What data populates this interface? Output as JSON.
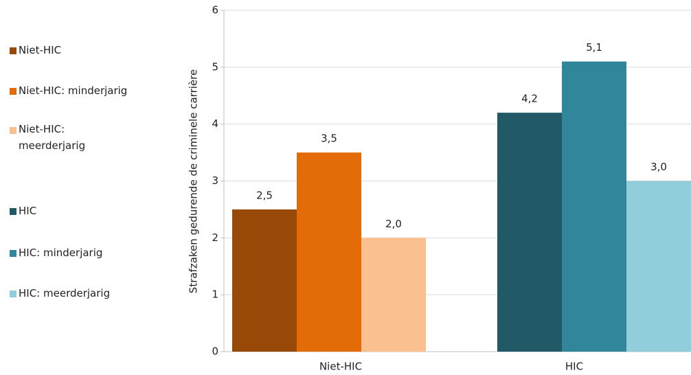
{
  "chart_data": {
    "type": "bar",
    "y_label": "Strafzaken gedurende de criminele carrière",
    "categories": [
      "Niet-HIC",
      "HIC"
    ],
    "series": [
      {
        "name": "Niet-HIC",
        "color": "#984807",
        "values": [
          2.5,
          null
        ],
        "value_labels": [
          "2,5",
          null
        ]
      },
      {
        "name": "Niet-HIC: minderjarig",
        "color": "#e36c09",
        "values": [
          3.5,
          null
        ],
        "value_labels": [
          "3,5",
          null
        ]
      },
      {
        "name": "Niet-HIC: meerderjarig",
        "color": "#fac090",
        "values": [
          2.0,
          null
        ],
        "value_labels": [
          "2,0",
          null
        ]
      },
      {
        "name": "HIC",
        "color": "#215967",
        "values": [
          null,
          4.2
        ],
        "value_labels": [
          null,
          "4,2"
        ]
      },
      {
        "name": "HIC: minderjarig",
        "color": "#31869b",
        "values": [
          null,
          5.1
        ],
        "value_labels": [
          null,
          "5,1"
        ]
      },
      {
        "name": "HIC: meerderjarig",
        "color": "#92cddc",
        "values": [
          null,
          3.0
        ],
        "value_labels": [
          null,
          "3,0"
        ]
      }
    ],
    "ylim": [
      0,
      6
    ],
    "yticks": [
      0,
      1,
      2,
      3,
      4,
      5,
      6
    ],
    "grid": true,
    "legend": "left"
  }
}
